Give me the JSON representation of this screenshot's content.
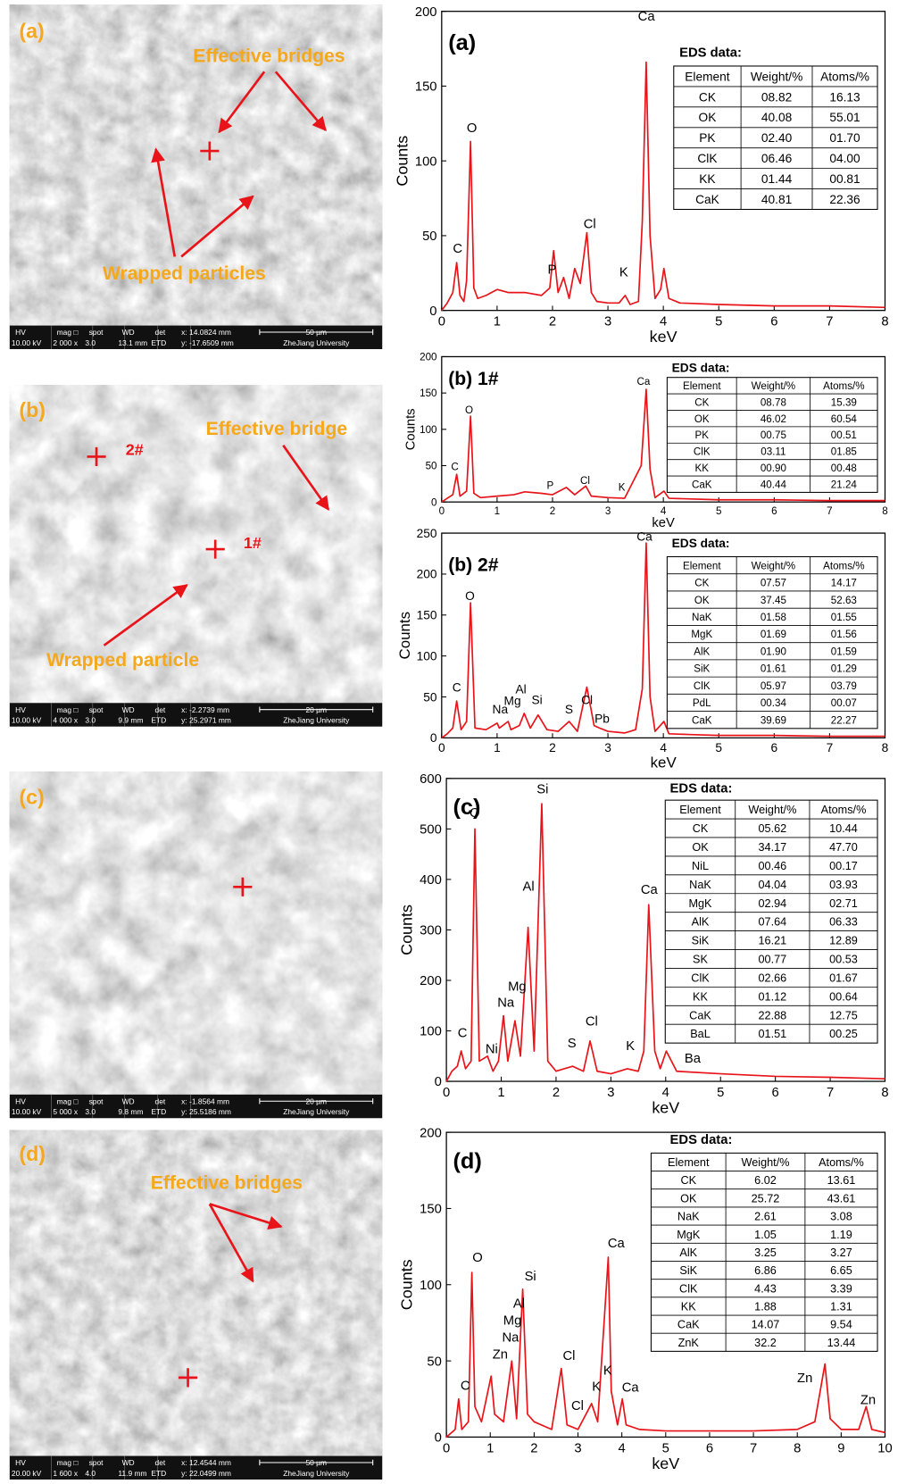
{
  "sem_panels": [
    {
      "label": "(a)",
      "annotations": [
        "Effective bridges",
        "Wrapped particles"
      ],
      "markers": [],
      "info_bar": {
        "headers": [
          "HV",
          "mag □",
          "spot",
          "WD",
          "det"
        ],
        "values": [
          "10.00 kV",
          "2 000 x",
          "3.0",
          "13.1 mm",
          "ETD"
        ],
        "x": "x: 14.0824 mm",
        "y": "y: -17.6509 mm",
        "scale": "50 µm",
        "lab": "ZheJiang University"
      }
    },
    {
      "label": "(b)",
      "annotations": [
        "Effective bridge",
        "Wrapped particle"
      ],
      "markers": [
        "2#",
        "1#"
      ],
      "info_bar": {
        "headers": [
          "HV",
          "mag □",
          "spot",
          "WD",
          "det"
        ],
        "values": [
          "10.00 kV",
          "4 000 x",
          "3.0",
          "9.9 mm",
          "ETD"
        ],
        "x": "x: -2.2739 mm",
        "y": "y: 25.2971 mm",
        "scale": "20 µm",
        "lab": "ZheJiang University"
      }
    },
    {
      "label": "(c)",
      "annotations": [],
      "markers": [],
      "info_bar": {
        "headers": [
          "HV",
          "mag □",
          "spot",
          "WD",
          "det"
        ],
        "values": [
          "10.00 kV",
          "5 000 x",
          "3.0",
          "9.8 mm",
          "ETD"
        ],
        "x": "x: -1.8564 mm",
        "y": "y: 25.5186 mm",
        "scale": "20 µm",
        "lab": "ZheJiang University"
      }
    },
    {
      "label": "(d)",
      "annotations": [
        "Effective bridges"
      ],
      "markers": [],
      "info_bar": {
        "headers": [
          "HV",
          "mag □",
          "spot",
          "WD",
          "det"
        ],
        "values": [
          "20.00 kV",
          "1 600 x",
          "4.0",
          "11.9 mm",
          "ETD"
        ],
        "x": "x: 12.4544 mm",
        "y": "y: 22.0499 mm",
        "scale": "50 µm",
        "lab": "ZheJiang University"
      }
    }
  ],
  "chart_data": [
    {
      "type": "line",
      "title": "(a)",
      "x_label": "keV",
      "y_label": "Counts",
      "color": "#e8141a",
      "xlim": [
        0,
        8
      ],
      "xticks": [
        0,
        1,
        2,
        3,
        4,
        5,
        6,
        7,
        8
      ],
      "ylim": [
        0,
        200
      ],
      "yticks": [
        0,
        50,
        100,
        150,
        200
      ],
      "x": [
        0,
        0.1,
        0.2,
        0.27,
        0.33,
        0.4,
        0.45,
        0.52,
        0.58,
        0.65,
        0.8,
        1.0,
        1.2,
        1.5,
        1.8,
        1.95,
        2.02,
        2.1,
        2.2,
        2.3,
        2.4,
        2.5,
        2.62,
        2.7,
        2.8,
        3.0,
        3.2,
        3.31,
        3.4,
        3.55,
        3.62,
        3.69,
        3.76,
        3.85,
        3.95,
        4.01,
        4.1,
        4.3,
        5,
        6,
        7,
        8
      ],
      "values": [
        0,
        5,
        12,
        32,
        10,
        6,
        20,
        113,
        15,
        8,
        10,
        14,
        12,
        12,
        10,
        15,
        40,
        12,
        22,
        8,
        28,
        18,
        52,
        12,
        6,
        5,
        5,
        10,
        4,
        6,
        60,
        166,
        50,
        8,
        14,
        28,
        8,
        5,
        4,
        3,
        3,
        2
      ],
      "peak_labels": [
        "C",
        "O",
        "P",
        "Cl",
        "K",
        "Ca"
      ],
      "table_title": "EDS data:",
      "table": {
        "header": [
          "Element",
          "Weight/%",
          "Atoms/%"
        ],
        "rows": [
          [
            "CK",
            "08.82",
            "16.13"
          ],
          [
            "OK",
            "40.08",
            "55.01"
          ],
          [
            "PK",
            "02.40",
            "01.70"
          ],
          [
            "ClK",
            "06.46",
            "04.00"
          ],
          [
            "KK",
            "01.44",
            "00.81"
          ],
          [
            "CaK",
            "40.81",
            "22.36"
          ]
        ]
      }
    },
    {
      "type": "line",
      "title": "(b) 1#",
      "x_label": "keV",
      "y_label": "Counts",
      "color": "#e8141a",
      "xlim": [
        0,
        8
      ],
      "xticks": [
        0,
        1,
        2,
        3,
        4,
        5,
        6,
        7,
        8
      ],
      "ylim": [
        0,
        200
      ],
      "yticks": [
        0,
        50,
        100,
        150,
        200
      ],
      "x": [
        0,
        0.1,
        0.2,
        0.27,
        0.33,
        0.45,
        0.52,
        0.58,
        0.7,
        1.0,
        1.3,
        1.5,
        1.8,
        2.0,
        2.25,
        2.4,
        2.6,
        2.7,
        3.0,
        3.3,
        3.6,
        3.69,
        3.76,
        3.85,
        4.01,
        4.1,
        5,
        6,
        7,
        8
      ],
      "values": [
        0,
        5,
        10,
        38,
        8,
        15,
        118,
        12,
        6,
        8,
        10,
        14,
        12,
        10,
        20,
        10,
        22,
        8,
        6,
        5,
        50,
        155,
        45,
        6,
        15,
        5,
        3,
        3,
        2,
        2
      ],
      "peak_labels": [
        "C",
        "O",
        "P",
        "Cl",
        "K",
        "Ca"
      ],
      "table_title": "EDS data:",
      "table": {
        "header": [
          "Element",
          "Weight/%",
          "Atoms/%"
        ],
        "rows": [
          [
            "CK",
            "08.78",
            "15.39"
          ],
          [
            "OK",
            "46.02",
            "60.54"
          ],
          [
            "PK",
            "00.75",
            "00.51"
          ],
          [
            "ClK",
            "03.11",
            "01.85"
          ],
          [
            "KK",
            "00.90",
            "00.48"
          ],
          [
            "CaK",
            "40.44",
            "21.24"
          ]
        ]
      }
    },
    {
      "type": "line",
      "title": "(b) 2#",
      "x_label": "keV",
      "y_label": "Counts",
      "color": "#e8141a",
      "xlim": [
        0,
        8
      ],
      "xticks": [
        0,
        1,
        2,
        3,
        4,
        5,
        6,
        7,
        8
      ],
      "ylim": [
        0,
        250
      ],
      "yticks": [
        0,
        50,
        100,
        150,
        200,
        250
      ],
      "x": [
        0,
        0.1,
        0.2,
        0.27,
        0.35,
        0.45,
        0.52,
        0.6,
        0.8,
        1.0,
        1.04,
        1.2,
        1.25,
        1.4,
        1.49,
        1.6,
        1.74,
        1.9,
        2.1,
        2.3,
        2.45,
        2.62,
        2.75,
        2.85,
        3.0,
        3.3,
        3.5,
        3.62,
        3.69,
        3.76,
        3.85,
        4.01,
        4.1,
        4.5,
        5,
        6,
        7,
        8
      ],
      "values": [
        0,
        5,
        12,
        45,
        10,
        20,
        165,
        12,
        10,
        18,
        12,
        20,
        10,
        15,
        30,
        12,
        28,
        10,
        8,
        20,
        8,
        62,
        15,
        12,
        8,
        6,
        10,
        60,
        238,
        50,
        8,
        20,
        5,
        4,
        3,
        3,
        2,
        2
      ],
      "peak_labels": [
        "C",
        "O",
        "Na",
        "Mg",
        "Al",
        "Si",
        "S",
        "Cl",
        "Pb",
        "Ca"
      ],
      "table_title": "EDS data:",
      "table": {
        "header": [
          "Element",
          "Weight/%",
          "Atoms/%"
        ],
        "rows": [
          [
            "CK",
            "07.57",
            "14.17"
          ],
          [
            "OK",
            "37.45",
            "52.63"
          ],
          [
            "NaK",
            "01.58",
            "01.55"
          ],
          [
            "MgK",
            "01.69",
            "01.56"
          ],
          [
            "AlK",
            "01.90",
            "01.59"
          ],
          [
            "SiK",
            "01.61",
            "01.29"
          ],
          [
            "ClK",
            "05.97",
            "03.79"
          ],
          [
            "PdL",
            "00.34",
            "00.07"
          ],
          [
            "CaK",
            "39.69",
            "22.27"
          ]
        ]
      }
    },
    {
      "type": "line",
      "title": "(c)",
      "x_label": "keV",
      "y_label": "Counts",
      "color": "#e8141a",
      "xlim": [
        0,
        8
      ],
      "xticks": [
        0,
        1,
        2,
        3,
        4,
        5,
        6,
        7,
        8
      ],
      "ylim": [
        0,
        600
      ],
      "yticks": [
        0,
        100,
        200,
        300,
        400,
        500,
        600
      ],
      "x": [
        0,
        0.1,
        0.2,
        0.27,
        0.35,
        0.45,
        0.52,
        0.6,
        0.75,
        0.85,
        0.95,
        1.04,
        1.12,
        1.25,
        1.35,
        1.49,
        1.6,
        1.74,
        1.85,
        2.0,
        2.3,
        2.5,
        2.62,
        2.75,
        3.0,
        3.3,
        3.5,
        3.6,
        3.69,
        3.8,
        3.9,
        4.01,
        4.2,
        5,
        6,
        7,
        8
      ],
      "values": [
        0,
        20,
        30,
        60,
        25,
        40,
        500,
        40,
        50,
        20,
        40,
        130,
        40,
        120,
        50,
        305,
        60,
        550,
        40,
        20,
        30,
        20,
        80,
        20,
        15,
        25,
        20,
        60,
        350,
        60,
        25,
        60,
        20,
        15,
        10,
        8,
        5
      ],
      "peak_labels": [
        "C",
        "O",
        "Ni",
        "Na",
        "Mg",
        "Al",
        "Si",
        "S",
        "Cl",
        "K",
        "Ca",
        "Ba"
      ],
      "table_title": "EDS data:",
      "table": {
        "header": [
          "Element",
          "Weight/%",
          "Atoms/%"
        ],
        "rows": [
          [
            "CK",
            "05.62",
            "10.44"
          ],
          [
            "OK",
            "34.17",
            "47.70"
          ],
          [
            "NiL",
            "00.46",
            "00.17"
          ],
          [
            "NaK",
            "04.04",
            "03.93"
          ],
          [
            "MgK",
            "02.94",
            "02.71"
          ],
          [
            "AlK",
            "07.64",
            "06.33"
          ],
          [
            "SiK",
            "16.21",
            "12.89"
          ],
          [
            "SK",
            "00.77",
            "00.53"
          ],
          [
            "ClK",
            "02.66",
            "01.67"
          ],
          [
            "KK",
            "01.12",
            "00.64"
          ],
          [
            "CaK",
            "22.88",
            "12.75"
          ],
          [
            "BaL",
            "01.51",
            "00.25"
          ]
        ]
      }
    },
    {
      "type": "line",
      "title": "(d)",
      "x_label": "keV",
      "y_label": "Counts",
      "color": "#e8141a",
      "xlim": [
        0,
        10
      ],
      "xticks": [
        0,
        1,
        2,
        3,
        4,
        5,
        6,
        7,
        8,
        9,
        10
      ],
      "ylim": [
        0,
        200
      ],
      "yticks": [
        0,
        50,
        100,
        150,
        200
      ],
      "x": [
        0,
        0.2,
        0.28,
        0.35,
        0.5,
        0.58,
        0.65,
        0.8,
        1.02,
        1.1,
        1.3,
        1.49,
        1.6,
        1.74,
        1.85,
        2.0,
        2.4,
        2.62,
        2.75,
        3.0,
        3.31,
        3.45,
        3.69,
        3.76,
        3.9,
        4.01,
        4.1,
        4.4,
        5,
        6,
        7,
        8,
        8.4,
        8.63,
        8.75,
        9,
        9.4,
        9.57,
        9.7,
        10
      ],
      "values": [
        0,
        5,
        25,
        5,
        10,
        108,
        20,
        10,
        40,
        15,
        10,
        50,
        12,
        97,
        15,
        10,
        5,
        45,
        8,
        5,
        22,
        10,
        118,
        30,
        8,
        25,
        8,
        5,
        4,
        4,
        4,
        5,
        10,
        48,
        12,
        5,
        5,
        20,
        5,
        3
      ],
      "peak_labels": [
        "C",
        "O",
        "Zn",
        "Na",
        "Mg",
        "Al",
        "Si",
        "Cl",
        "Cl",
        "K",
        "K",
        "Ca",
        "Ca",
        "Zn",
        "Zn"
      ],
      "table_title": "EDS data:",
      "table": {
        "header": [
          "Element",
          "Weight/%",
          "Atoms/%"
        ],
        "rows": [
          [
            "CK",
            "6.02",
            "13.61"
          ],
          [
            "OK",
            "25.72",
            "43.61"
          ],
          [
            "NaK",
            "2.61",
            "3.08"
          ],
          [
            "MgK",
            "1.05",
            "1.19"
          ],
          [
            "AlK",
            "3.25",
            "3.27"
          ],
          [
            "SiK",
            "6.86",
            "6.65"
          ],
          [
            "ClK",
            "4.43",
            "3.39"
          ],
          [
            "KK",
            "1.88",
            "1.31"
          ],
          [
            "CaK",
            "14.07",
            "9.54"
          ],
          [
            "ZnK",
            "32.2",
            "13.44"
          ]
        ]
      }
    }
  ]
}
